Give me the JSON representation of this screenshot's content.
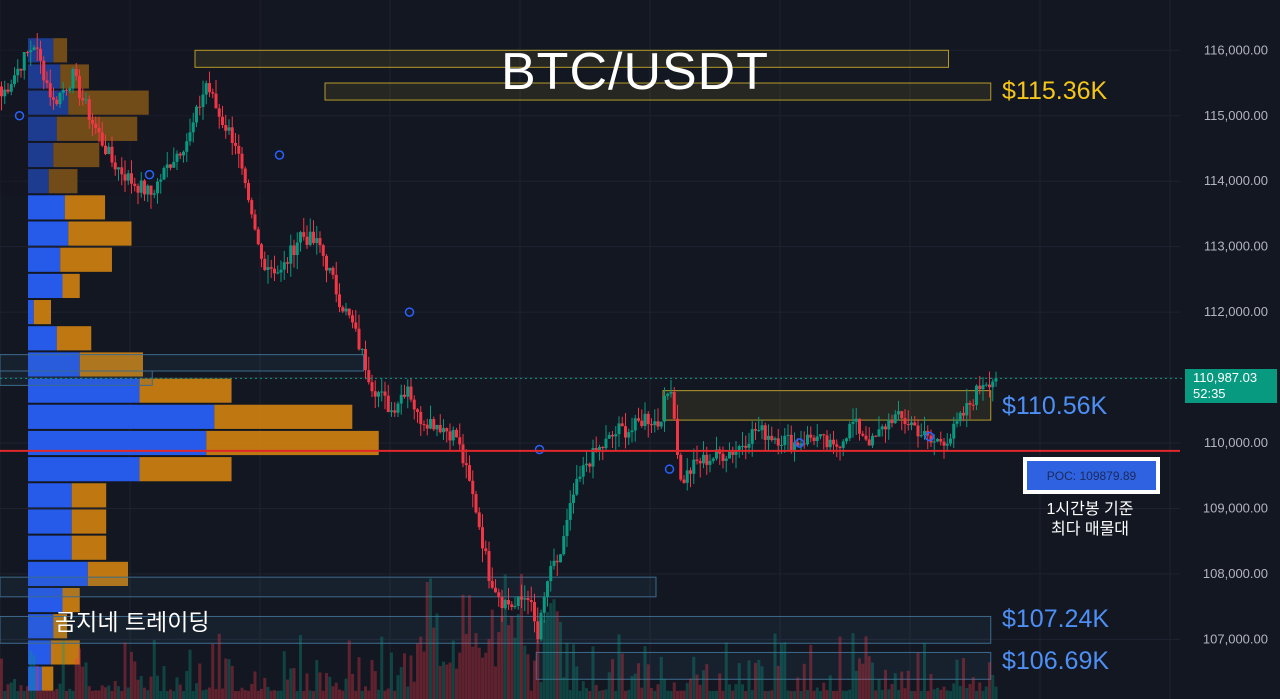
{
  "title": "BTC/USDT",
  "watermark": "곰지네 트레이딩",
  "levels": [
    {
      "label": "$115.36K",
      "price": 115360,
      "color": "#f5c518"
    },
    {
      "label": "$110.56K",
      "price": 110560,
      "color": "#4d8ff5"
    },
    {
      "label": "$107.24K",
      "price": 107240,
      "color": "#4d8ff5"
    },
    {
      "label": "$106.69K",
      "price": 106690,
      "color": "#4d8ff5"
    }
  ],
  "current_price": {
    "value": "110,987.03",
    "countdown": "52:35"
  },
  "poc": {
    "label": "POC: 109879.89",
    "note_line1": "1시간봉 기준",
    "note_line2": "최다 매물대"
  },
  "colors": {
    "background": "#131722",
    "up": "#089981",
    "down": "#f23645",
    "profile_blue": "#2962ff",
    "profile_orange": "#d38310",
    "poc_line": "#e0282b",
    "zone_yellow": "#b59a2a",
    "zone_blue": "#3d6a8c",
    "axis_text": "#b2b5be"
  },
  "chart_data": {
    "type": "candlestick",
    "title": "BTC/USDT",
    "timeframe_note": "1시간봉 기준",
    "y_axis": {
      "ticks": [
        116000,
        115000,
        114000,
        113000,
        112000,
        111000,
        110000,
        109000,
        108000,
        107000
      ],
      "tick_labels": [
        "116,000.00",
        "115,000.00",
        "114,000.00",
        "113,000.00",
        "112,000.00",
        "111,000.00",
        "110,000.00",
        "109,000.00",
        "108,000.00",
        "107,000.00"
      ],
      "range": [
        106200,
        116900
      ]
    },
    "poc_price": 109879.89,
    "last_price": 110987.03,
    "key_prices": [
      "115.36K",
      "110.56K",
      "107.24K",
      "106.69K"
    ],
    "price_path": [
      [
        0,
        115300
      ],
      [
        6,
        115800
      ],
      [
        10,
        116100
      ],
      [
        16,
        115200
      ],
      [
        22,
        115600
      ],
      [
        28,
        114900
      ],
      [
        34,
        114300
      ],
      [
        40,
        114000
      ],
      [
        46,
        113800
      ],
      [
        52,
        114300
      ],
      [
        58,
        114700
      ],
      [
        63,
        115500
      ],
      [
        67,
        115000
      ],
      [
        72,
        114600
      ],
      [
        76,
        113600
      ],
      [
        80,
        112800
      ],
      [
        86,
        112600
      ],
      [
        92,
        113200
      ],
      [
        98,
        113000
      ],
      [
        104,
        112200
      ],
      [
        108,
        111800
      ],
      [
        114,
        110900
      ],
      [
        120,
        110500
      ],
      [
        125,
        110900
      ],
      [
        128,
        110400
      ],
      [
        134,
        110300
      ],
      [
        140,
        110100
      ],
      [
        146,
        109000
      ],
      [
        150,
        108000
      ],
      [
        154,
        107600
      ],
      [
        158,
        107500
      ],
      [
        162,
        107700
      ],
      [
        165,
        107000
      ],
      [
        168,
        107900
      ],
      [
        172,
        108300
      ],
      [
        176,
        109200
      ],
      [
        180,
        109700
      ],
      [
        186,
        110000
      ],
      [
        190,
        110200
      ],
      [
        194,
        110200
      ],
      [
        198,
        110400
      ],
      [
        202,
        110300
      ],
      [
        206,
        110900
      ],
      [
        209,
        109400
      ],
      [
        214,
        109700
      ],
      [
        220,
        109800
      ],
      [
        226,
        109900
      ],
      [
        232,
        110200
      ],
      [
        238,
        110100
      ],
      [
        244,
        110000
      ],
      [
        250,
        110100
      ],
      [
        256,
        109900
      ],
      [
        262,
        110300
      ],
      [
        268,
        110000
      ],
      [
        274,
        110400
      ],
      [
        280,
        110300
      ],
      [
        286,
        110000
      ],
      [
        292,
        110100
      ],
      [
        298,
        110600
      ],
      [
        302,
        110950
      ],
      [
        306,
        110987
      ]
    ],
    "volume_profile": [
      {
        "price_low": 115800,
        "price_high": 116200,
        "buy": 22,
        "sell": 12
      },
      {
        "price_low": 115400,
        "price_high": 115800,
        "buy": 28,
        "sell": 25
      },
      {
        "price_low": 115000,
        "price_high": 115400,
        "buy": 35,
        "sell": 70
      },
      {
        "price_low": 114600,
        "price_high": 115000,
        "buy": 25,
        "sell": 70
      },
      {
        "price_low": 114200,
        "price_high": 114600,
        "buy": 22,
        "sell": 40
      },
      {
        "price_low": 113800,
        "price_high": 114200,
        "buy": 18,
        "sell": 25
      },
      {
        "price_low": 113400,
        "price_high": 113800,
        "buy": 32,
        "sell": 35
      },
      {
        "price_low": 113000,
        "price_high": 113400,
        "buy": 35,
        "sell": 55
      },
      {
        "price_low": 112600,
        "price_high": 113000,
        "buy": 28,
        "sell": 45
      },
      {
        "price_low": 112200,
        "price_high": 112600,
        "buy": 30,
        "sell": 15
      },
      {
        "price_low": 111800,
        "price_high": 112200,
        "buy": 5,
        "sell": 15
      },
      {
        "price_low": 111400,
        "price_high": 111800,
        "buy": 25,
        "sell": 30
      },
      {
        "price_low": 111000,
        "price_high": 111400,
        "buy": 45,
        "sell": 55
      },
      {
        "price_low": 110600,
        "price_high": 111000,
        "buy": 97,
        "sell": 80
      },
      {
        "price_low": 110200,
        "price_high": 110600,
        "buy": 162,
        "sell": 120
      },
      {
        "price_low": 109800,
        "price_high": 110200,
        "buy": 155,
        "sell": 150
      },
      {
        "price_low": 109400,
        "price_high": 109800,
        "buy": 97,
        "sell": 80
      },
      {
        "price_low": 109000,
        "price_high": 109400,
        "buy": 38,
        "sell": 30
      },
      {
        "price_low": 108600,
        "price_high": 109000,
        "buy": 38,
        "sell": 30
      },
      {
        "price_low": 108200,
        "price_high": 108600,
        "buy": 38,
        "sell": 30
      },
      {
        "price_low": 107800,
        "price_high": 108200,
        "buy": 52,
        "sell": 35
      },
      {
        "price_low": 107400,
        "price_high": 107800,
        "buy": 30,
        "sell": 15
      },
      {
        "price_low": 107000,
        "price_high": 107400,
        "buy": 22,
        "sell": 12
      },
      {
        "price_low": 106600,
        "price_high": 107000,
        "buy": 20,
        "sell": 25
      },
      {
        "price_low": 106200,
        "price_high": 106600,
        "buy": 12,
        "sell": 10
      }
    ],
    "zones": [
      {
        "from": 115740,
        "to": 116000,
        "x0": 60,
        "x1": 290,
        "color": "yellow"
      },
      {
        "from": 115240,
        "to": 115500,
        "x0": 100,
        "x1": 303,
        "color": "yellow"
      },
      {
        "from": 111100,
        "to": 111350,
        "x0": 0,
        "x1": 110,
        "color": "blue"
      },
      {
        "from": 110880,
        "to": 111100,
        "x0": 0,
        "x1": 45,
        "color": "blue"
      },
      {
        "from": 110350,
        "to": 110800,
        "x0": 204,
        "x1": 303,
        "color": "yellow"
      },
      {
        "from": 107650,
        "to": 107950,
        "x0": 0,
        "x1": 200,
        "color": "blue"
      },
      {
        "from": 106940,
        "to": 107350,
        "x0": 0,
        "x1": 303,
        "color": "blue"
      },
      {
        "from": 106390,
        "to": 106800,
        "x0": 165,
        "x1": 303,
        "color": "blue"
      }
    ]
  }
}
